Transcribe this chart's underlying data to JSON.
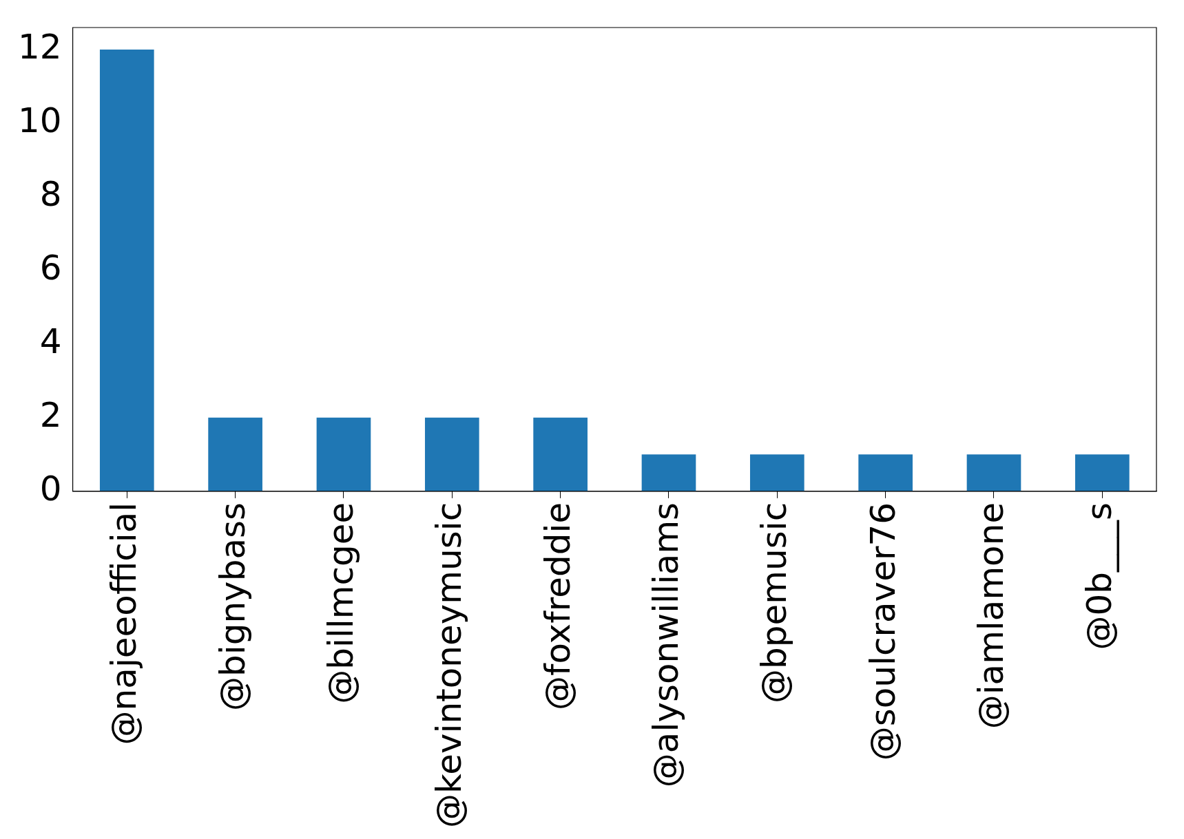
{
  "chart_data": {
    "type": "bar",
    "categories": [
      "@najeeofficial",
      "@bignybass",
      "@billmcgee",
      "@kevintoneymusic",
      "@foxfreddie",
      "@alysonwilliams",
      "@bpemusic",
      "@soulcraver76",
      "@iamlamone",
      "@0b___s"
    ],
    "values": [
      12,
      2,
      2,
      2,
      2,
      1,
      1,
      1,
      1,
      1
    ],
    "color": "#1f77b4",
    "ylim": [
      0,
      12.6
    ],
    "yticks": [
      0,
      2,
      4,
      6,
      8,
      10,
      12
    ],
    "grid": false
  }
}
